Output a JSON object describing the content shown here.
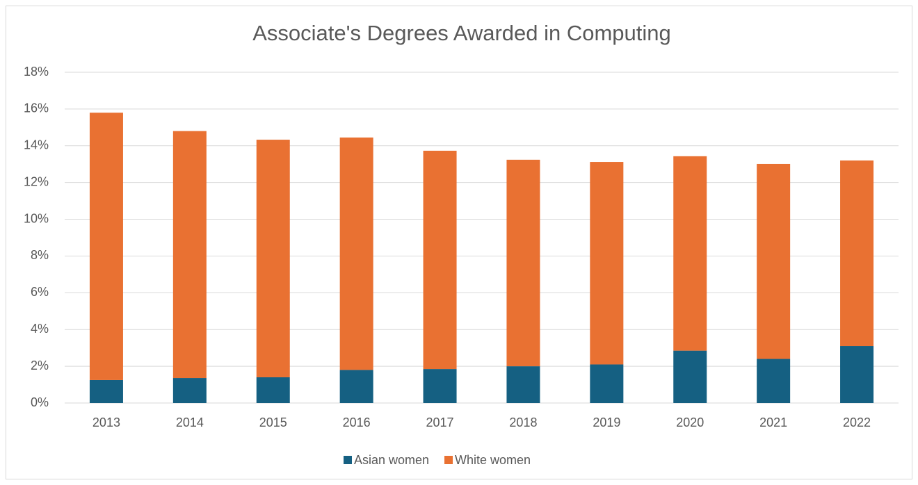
{
  "chart_data": {
    "type": "stacked_bar",
    "title": "Associate's Degrees Awarded in Computing",
    "categories": [
      "2013",
      "2014",
      "2015",
      "2016",
      "2017",
      "2018",
      "2019",
      "2020",
      "2021",
      "2022"
    ],
    "series": [
      {
        "name": "Asian women",
        "color": "#156082",
        "values": [
          1.25,
          1.36,
          1.4,
          1.8,
          1.85,
          2.0,
          2.1,
          2.85,
          2.4,
          3.1
        ]
      },
      {
        "name": "White women",
        "color": "#e97132",
        "values": [
          14.55,
          13.44,
          12.93,
          12.65,
          11.88,
          11.24,
          11.02,
          10.58,
          10.61,
          10.1
        ]
      }
    ],
    "ylim": [
      0,
      18
    ],
    "yticks": [
      {
        "value": 0,
        "label": "0%"
      },
      {
        "value": 2,
        "label": "2%"
      },
      {
        "value": 4,
        "label": "4%"
      },
      {
        "value": 6,
        "label": "6%"
      },
      {
        "value": 8,
        "label": "8%"
      },
      {
        "value": 10,
        "label": "10%"
      },
      {
        "value": 12,
        "label": "12%"
      },
      {
        "value": 14,
        "label": "14%"
      },
      {
        "value": 16,
        "label": "16%"
      },
      {
        "value": 18,
        "label": "18%"
      }
    ],
    "grid": true,
    "legend": "bottom"
  }
}
